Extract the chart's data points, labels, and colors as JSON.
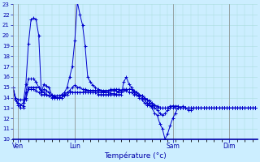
{
  "title": "Température (°c)",
  "background_color": "#cceeff",
  "grid_color": "#aadddd",
  "line_color": "#0000cc",
  "marker_color": "#0000cc",
  "ylim": [
    10,
    23
  ],
  "xlim": [
    0,
    95
  ],
  "yticks": [
    10,
    11,
    12,
    13,
    14,
    15,
    16,
    17,
    18,
    19,
    20,
    21,
    22,
    23
  ],
  "xtick_labels": [
    "Ven",
    "Lun",
    "Sam",
    "Dim"
  ],
  "xtick_positions": [
    2,
    24,
    62,
    84
  ],
  "series": [
    [
      15.0,
      13.8,
      13.5,
      13.3,
      13.5,
      15.3,
      19.2,
      21.5,
      21.7,
      21.5,
      20.0,
      14.5,
      15.3,
      15.1,
      15.0,
      14.3,
      14.1,
      14.0,
      14.0,
      14.3,
      14.5,
      15.0,
      16.0,
      17.0,
      19.5,
      23.2,
      22.0,
      21.0,
      19.0,
      16.0,
      15.5,
      15.2,
      15.0,
      14.8,
      14.7,
      14.6,
      14.5,
      14.5,
      14.4,
      14.4,
      14.3,
      14.3,
      14.3,
      15.5,
      16.0,
      15.3,
      15.0,
      14.5,
      14.3,
      14.2,
      14.0,
      13.8,
      13.5,
      13.3,
      13.0,
      12.5,
      12.3,
      11.5,
      11.0,
      10.0,
      10.5,
      11.3,
      12.0,
      12.5,
      13.0,
      13.0,
      13.2,
      13.0,
      12.8,
      12.8,
      13.0,
      13.0,
      13.0,
      13.0,
      13.0,
      13.0,
      13.0,
      13.0,
      13.0,
      13.0,
      13.0,
      13.0,
      13.0,
      13.0,
      13.0,
      13.0,
      13.0,
      13.0,
      13.0,
      13.0,
      13.0,
      13.0,
      13.0,
      13.0,
      13.0
    ],
    [
      15.0,
      13.8,
      13.3,
      13.0,
      13.0,
      14.5,
      15.8,
      15.8,
      15.8,
      15.5,
      15.0,
      14.5,
      14.8,
      14.7,
      14.5,
      14.2,
      14.0,
      14.0,
      14.0,
      14.0,
      14.2,
      14.5,
      14.7,
      15.0,
      15.2,
      15.0,
      15.0,
      14.8,
      14.8,
      14.7,
      14.7,
      14.7,
      14.7,
      14.7,
      14.7,
      14.7,
      14.7,
      14.7,
      14.7,
      14.7,
      14.7,
      14.5,
      14.5,
      14.7,
      14.7,
      14.8,
      14.8,
      14.5,
      14.5,
      14.3,
      14.2,
      14.0,
      13.8,
      13.5,
      13.3,
      13.3,
      13.0,
      13.0,
      13.0,
      13.0,
      13.0,
      13.0,
      13.2,
      13.0,
      13.0,
      13.0,
      13.0,
      13.0,
      13.0,
      13.0,
      13.0,
      13.0,
      13.0,
      13.0,
      13.0,
      13.0,
      13.0,
      13.0,
      13.0,
      13.0,
      13.0,
      13.0,
      13.0,
      13.0,
      13.0,
      13.0,
      13.0,
      13.0,
      13.0,
      13.0,
      13.0,
      13.0,
      13.0,
      13.0,
      13.0
    ],
    [
      15.0,
      13.8,
      13.5,
      13.3,
      13.2,
      14.0,
      15.0,
      15.0,
      15.0,
      15.0,
      15.0,
      14.7,
      14.5,
      14.3,
      14.2,
      14.0,
      14.0,
      14.0,
      14.0,
      14.0,
      14.2,
      14.3,
      14.5,
      14.5,
      14.5,
      14.5,
      14.5,
      14.5,
      14.5,
      14.5,
      14.5,
      14.5,
      14.5,
      14.3,
      14.3,
      14.3,
      14.3,
      14.3,
      14.3,
      14.3,
      14.3,
      14.7,
      14.7,
      14.8,
      14.8,
      14.5,
      14.5,
      14.3,
      14.3,
      14.0,
      13.8,
      13.5,
      13.3,
      13.3,
      13.2,
      13.0,
      12.8,
      12.5,
      12.3,
      12.5,
      12.8,
      13.0,
      13.0,
      13.0,
      13.0,
      13.0,
      13.0,
      13.0,
      13.0,
      13.0,
      13.0,
      13.0,
      13.0,
      13.0,
      13.0,
      13.0,
      13.0,
      13.0,
      13.0,
      13.0,
      13.0,
      13.0,
      13.0,
      13.0,
      13.0,
      13.0,
      13.0,
      13.0,
      13.0,
      13.0,
      13.0,
      13.0,
      13.0,
      13.0,
      13.0
    ],
    [
      15.0,
      14.0,
      13.8,
      13.8,
      13.8,
      13.8,
      14.8,
      14.8,
      14.8,
      14.7,
      14.5,
      14.3,
      14.3,
      14.3,
      14.2,
      14.2,
      14.2,
      14.2,
      14.2,
      14.3,
      14.3,
      14.5,
      14.5,
      14.5,
      14.5,
      14.5,
      14.5,
      14.5,
      14.7,
      14.7,
      14.7,
      14.7,
      14.7,
      14.5,
      14.5,
      14.5,
      14.5,
      14.5,
      14.8,
      14.8,
      14.8,
      14.8,
      14.7,
      14.8,
      14.8,
      14.8,
      14.8,
      14.7,
      14.5,
      14.3,
      14.2,
      14.0,
      13.8,
      13.7,
      13.5,
      13.3,
      13.2,
      13.0,
      13.0,
      13.0,
      13.0,
      13.2,
      13.2,
      13.2,
      13.2,
      13.0,
      13.0,
      13.0,
      13.0,
      13.0,
      13.0,
      13.0,
      13.0,
      13.0,
      13.0,
      13.0,
      13.0,
      13.0,
      13.0,
      13.0,
      13.0,
      13.0,
      13.0,
      13.0,
      13.0,
      13.0,
      13.0,
      13.0,
      13.0,
      13.0,
      13.0,
      13.0,
      13.0,
      13.0,
      13.0
    ]
  ]
}
